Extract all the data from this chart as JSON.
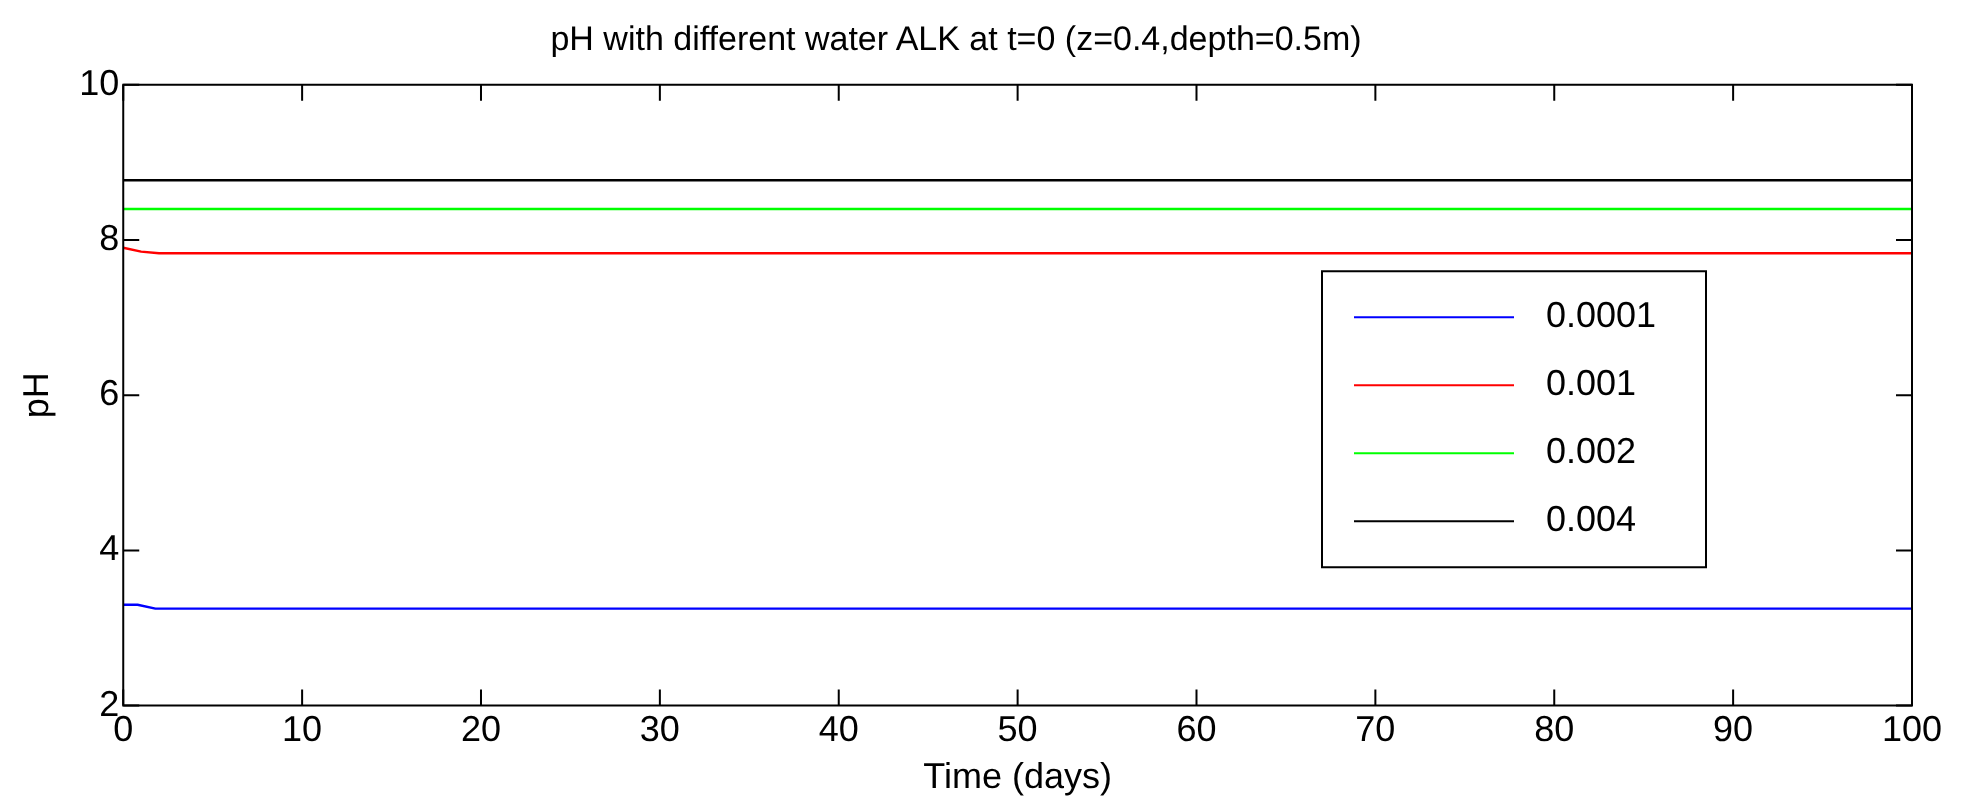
{
  "chart_data": {
    "type": "line",
    "title": "pH with different water ALK at t=0 (z=0.4,depth=0.5m)",
    "xlabel": "Time (days)",
    "ylabel": "pH",
    "xlim": [
      0,
      100
    ],
    "xticks": [
      0,
      10,
      20,
      30,
      40,
      50,
      60,
      70,
      80,
      90,
      100
    ],
    "ylim": [
      2,
      10
    ],
    "yticks": [
      2,
      4,
      6,
      8,
      10
    ],
    "grid": false,
    "legend": "right",
    "marker": "none",
    "line_style": "solid",
    "series": [
      {
        "name": "0.0001",
        "color": "#0000ff",
        "x": [
          0,
          0.8,
          1.8,
          100
        ],
        "values": [
          3.3,
          3.3,
          3.25,
          3.25
        ]
      },
      {
        "name": "0.001",
        "color": "#ff0000",
        "x": [
          0,
          1,
          2,
          100
        ],
        "values": [
          7.9,
          7.85,
          7.83,
          7.83
        ]
      },
      {
        "name": "0.002",
        "color": "#00ff00",
        "x": [
          0,
          100
        ],
        "values": [
          8.4,
          8.4
        ]
      },
      {
        "name": "0.004",
        "color": "#000000",
        "x": [
          0,
          100
        ],
        "values": [
          8.77,
          8.77
        ]
      }
    ]
  }
}
